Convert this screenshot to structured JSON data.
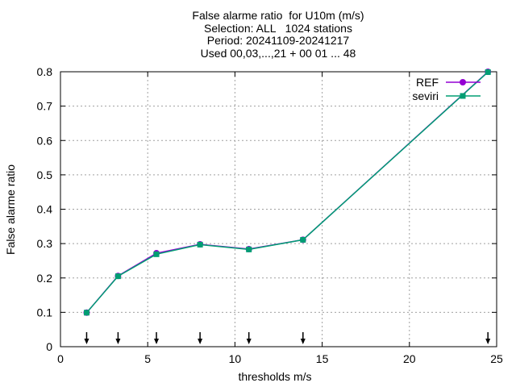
{
  "chart_data": {
    "type": "line",
    "title_lines": [
      "False alarme ratio  for U10m (m/s)",
      "Selection: ALL   1024 stations",
      "Period: 20241109-20241217",
      "Used 00,03,...,21 + 00 01 ... 48"
    ],
    "xlabel": "thresholds m/s",
    "ylabel": "False alarme ratio",
    "xlim": [
      0,
      25
    ],
    "ylim": [
      0,
      0.8
    ],
    "xticks": [
      "0",
      "5",
      "10",
      "15",
      "20",
      "25"
    ],
    "yticks": [
      "0",
      "0.1",
      "0.2",
      "0.3",
      "0.4",
      "0.5",
      "0.6",
      "0.7",
      "0.8"
    ],
    "grid": true,
    "legend_position": "top-right",
    "threshold_arrows_x": [
      1.5,
      3.3,
      5.5,
      8.0,
      10.8,
      13.9,
      24.5
    ],
    "series": [
      {
        "name": "REF",
        "color": "#9400d3",
        "x": [
          1.5,
          3.3,
          5.5,
          8.0,
          10.8,
          13.9,
          24.5
        ],
        "y": [
          0.099,
          0.206,
          0.272,
          0.298,
          0.284,
          0.311,
          0.8
        ]
      },
      {
        "name": "seviri",
        "color": "#009e73",
        "x": [
          1.5,
          3.3,
          5.5,
          8.0,
          10.8,
          13.9,
          24.5
        ],
        "y": [
          0.099,
          0.205,
          0.269,
          0.297,
          0.283,
          0.311,
          0.799
        ]
      }
    ]
  }
}
